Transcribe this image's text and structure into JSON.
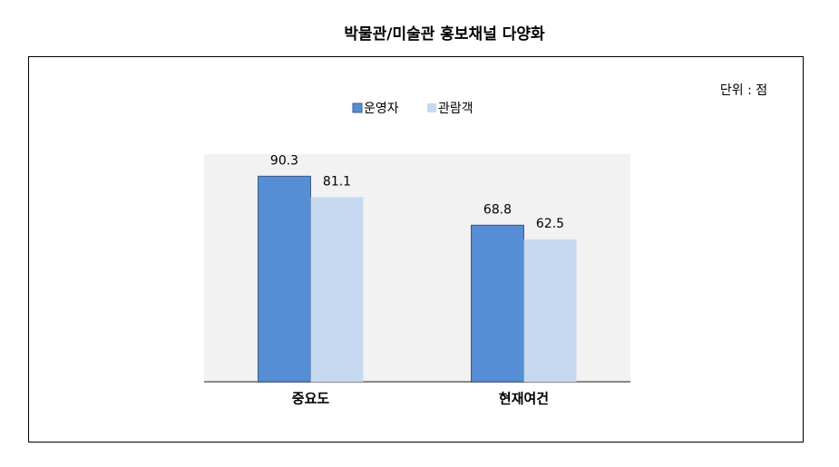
{
  "chart_data": {
    "type": "bar",
    "title": "박물관/미술관 홍보채널 다양화",
    "unit_note": "단위 : 점",
    "categories": [
      "중요도",
      "현재여건"
    ],
    "series": [
      {
        "name": "운영자",
        "color": "#558ed5",
        "values": [
          90.3,
          68.8
        ]
      },
      {
        "name": "관람객",
        "color": "#c6d9f1",
        "values": [
          81.1,
          62.5
        ]
      }
    ],
    "ylim": [
      0,
      100
    ]
  }
}
